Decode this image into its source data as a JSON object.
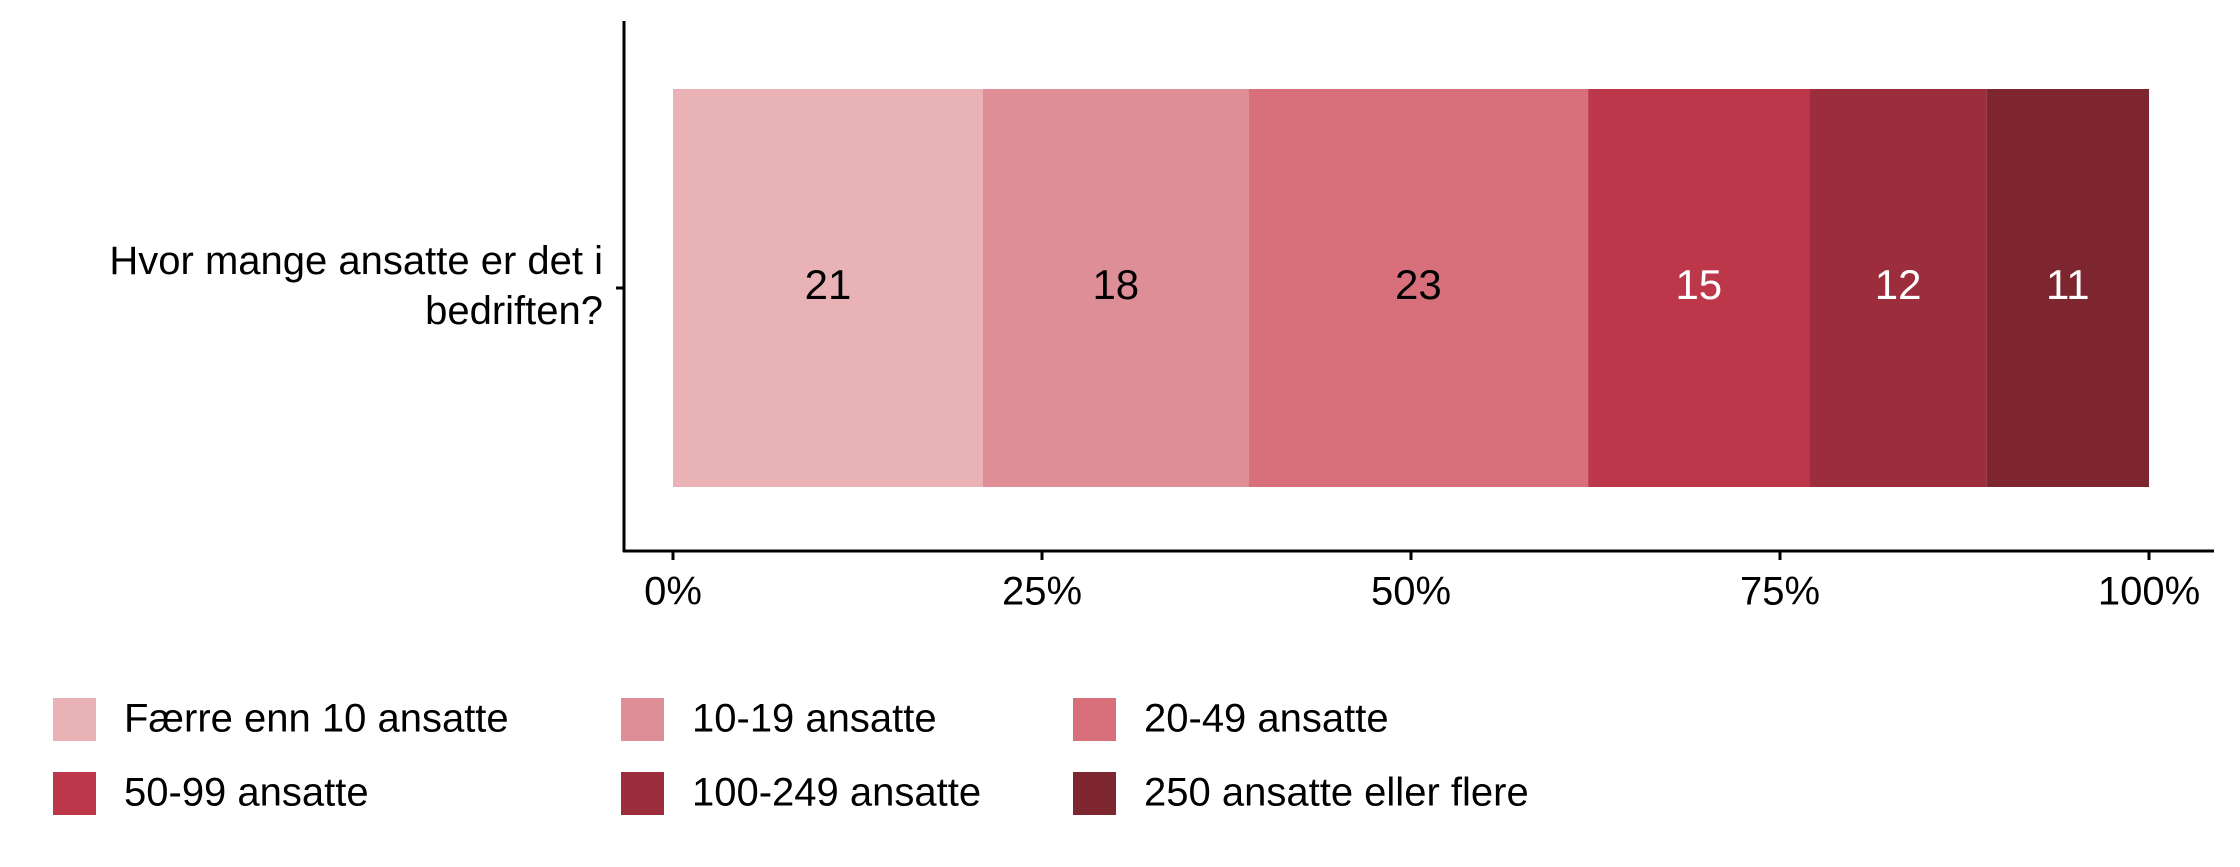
{
  "chart_data": {
    "type": "stacked-barh",
    "categories": [
      "Hvor mange ansatte er det i bedriften?"
    ],
    "series": [
      {
        "name": "Færre enn 10 ansatte",
        "color": "#e8b2b7",
        "label_color": "#000000",
        "values": [
          21
        ]
      },
      {
        "name": "10-19 ansatte",
        "color": "#dd8e96",
        "label_color": "#000000",
        "values": [
          18
        ]
      },
      {
        "name": "20-49 ansatte",
        "color": "#d7707b",
        "label_color": "#000000",
        "values": [
          23
        ]
      },
      {
        "name": "50-99 ansatte",
        "color": "#bc374a",
        "label_color": "#ffffff",
        "values": [
          15
        ]
      },
      {
        "name": "100-249 ansatte",
        "color": "#9c2d3c",
        "label_color": "#ffffff",
        "values": [
          12
        ]
      },
      {
        "name": "250 ansatte eller flere",
        "color": "#7e2630",
        "label_color": "#ffffff",
        "values": [
          11
        ]
      }
    ],
    "xlim": [
      0,
      100
    ],
    "xticks": [
      {
        "value": 0,
        "label": "0%"
      },
      {
        "value": 25,
        "label": "25%"
      },
      {
        "value": 50,
        "label": "50%"
      },
      {
        "value": 75,
        "label": "75%"
      },
      {
        "value": 100,
        "label": "100%"
      }
    ],
    "legend": "bottom"
  }
}
